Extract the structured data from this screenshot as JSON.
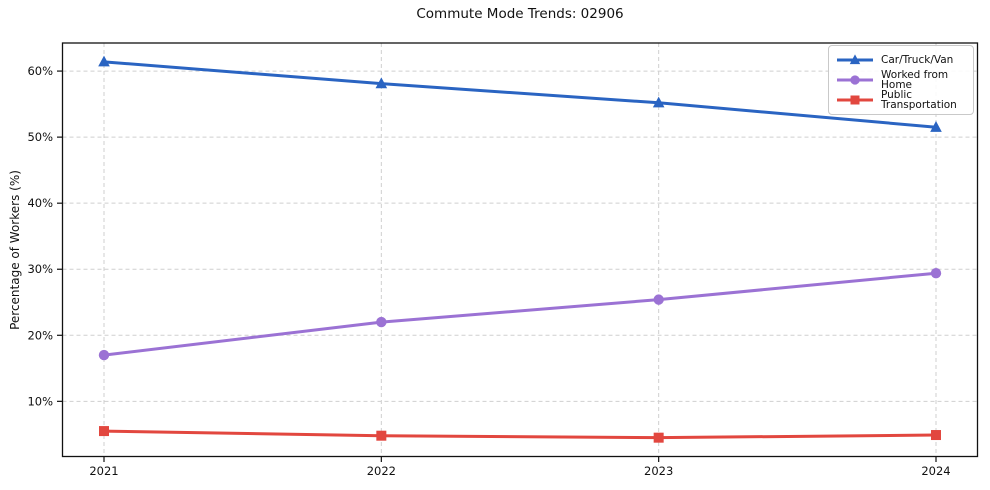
{
  "chart_data": {
    "type": "line",
    "title": "Commute Mode Trends: 02906",
    "ylabel": "Percentage of Workers (%)",
    "xlabel": "",
    "x": [
      "2021",
      "2022",
      "2023",
      "2024"
    ],
    "series": [
      {
        "name": "Car/Truck/Van",
        "marker": "triangle",
        "color": "#2a64c2",
        "values": [
          61.4,
          58.1,
          55.2,
          51.5
        ]
      },
      {
        "name": "Worked from Home",
        "marker": "circle",
        "color": "#9b72d4",
        "values": [
          17.0,
          22.0,
          25.4,
          29.4
        ]
      },
      {
        "name": "Public Transportation",
        "marker": "square",
        "color": "#e2473f",
        "values": [
          5.5,
          4.8,
          4.5,
          4.9
        ]
      }
    ],
    "yticks": [
      10,
      20,
      30,
      40,
      50,
      60
    ],
    "ytick_labels": [
      "10%",
      "20%",
      "30%",
      "40%",
      "50%",
      "60%"
    ],
    "ylim": [
      1.65,
      64.25
    ],
    "grid": true,
    "grid_style": "dashed",
    "legend_position": "upper right",
    "colors": {
      "grid": "#cfcfcf",
      "spine": "#111111",
      "text": "#111111",
      "background": "#ffffff"
    }
  }
}
